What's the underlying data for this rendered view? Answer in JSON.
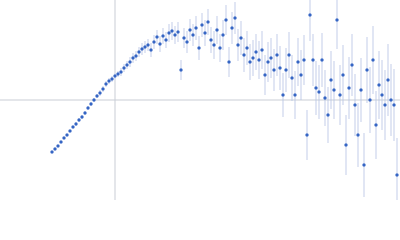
{
  "chart_data": {
    "type": "scatter",
    "x": [
      -63,
      -60,
      -57,
      -54,
      -51,
      -48,
      -45,
      -42,
      -39,
      -36,
      -33,
      -30,
      -27,
      -24,
      -21,
      -18,
      -15,
      -12,
      -9,
      -6,
      -3,
      0,
      3,
      6,
      9,
      12,
      15,
      18,
      21,
      24,
      27,
      30,
      33,
      36,
      39,
      42,
      45,
      48,
      51,
      54,
      57,
      60,
      63,
      66,
      69,
      72,
      75,
      78,
      81,
      84,
      87,
      90,
      93,
      96,
      99,
      102,
      105,
      108,
      111,
      114,
      117,
      120,
      123,
      126,
      129,
      132,
      135,
      138,
      141,
      144,
      147,
      150,
      153,
      156,
      159,
      162,
      165,
      168,
      171,
      174,
      177,
      180,
      183,
      186,
      189,
      192,
      195,
      198,
      201,
      204,
      207,
      210,
      213,
      216,
      219,
      222,
      225,
      228,
      231,
      234,
      237,
      240,
      243,
      246,
      249,
      252,
      255,
      258,
      261,
      264,
      267,
      270,
      273,
      276,
      279,
      282
    ],
    "values": [
      -52,
      -49,
      -46,
      -42,
      -38,
      -35,
      -31,
      -27,
      -24,
      -20,
      -17,
      -13,
      -8,
      -4,
      0,
      4,
      7,
      11,
      16,
      19,
      21,
      24,
      26,
      28,
      32,
      35,
      38,
      42,
      44,
      48,
      51,
      53,
      55,
      50,
      58,
      63,
      56,
      64,
      60,
      67,
      69,
      65,
      68,
      30,
      62,
      58,
      70,
      65,
      72,
      52,
      75,
      67,
      78,
      60,
      55,
      70,
      52,
      65,
      80,
      38,
      72,
      82,
      55,
      62,
      45,
      52,
      38,
      42,
      48,
      40,
      50,
      25,
      38,
      42,
      30,
      45,
      32,
      5,
      30,
      45,
      22,
      5,
      38,
      25,
      40,
      -35,
      85,
      40,
      12,
      8,
      40,
      2,
      -15,
      20,
      10,
      80,
      5,
      25,
      -45,
      12,
      35,
      -5,
      -35,
      10,
      -65,
      30,
      0,
      40,
      -25,
      15,
      5,
      -5,
      20,
      0,
      -5,
      -75
    ],
    "errors": [
      1,
      1,
      1,
      1,
      1,
      1,
      1,
      1,
      2,
      2,
      2,
      2,
      2,
      2,
      2,
      2,
      3,
      3,
      3,
      3,
      3,
      3,
      3,
      4,
      4,
      4,
      5,
      5,
      5,
      5,
      6,
      6,
      6,
      7,
      7,
      7,
      8,
      8,
      8,
      9,
      9,
      9,
      10,
      10,
      10,
      11,
      11,
      11,
      12,
      12,
      12,
      13,
      13,
      13,
      14,
      14,
      14,
      15,
      15,
      15,
      16,
      16,
      16,
      17,
      17,
      17,
      18,
      18,
      18,
      19,
      19,
      20,
      20,
      20,
      21,
      21,
      22,
      22,
      22,
      23,
      23,
      24,
      24,
      25,
      25,
      25,
      26,
      26,
      27,
      27,
      27,
      28,
      28,
      29,
      29,
      29,
      30,
      30,
      30,
      31,
      31,
      31,
      32,
      32,
      32,
      33,
      33,
      34,
      34,
      34,
      35,
      35,
      36,
      36,
      36,
      37
    ],
    "color": "#3565c4",
    "error_color": "#b4c2e4",
    "xlim": [
      -115,
      285
    ],
    "ylim": [
      -100,
      100
    ],
    "zero_lines": true
  }
}
